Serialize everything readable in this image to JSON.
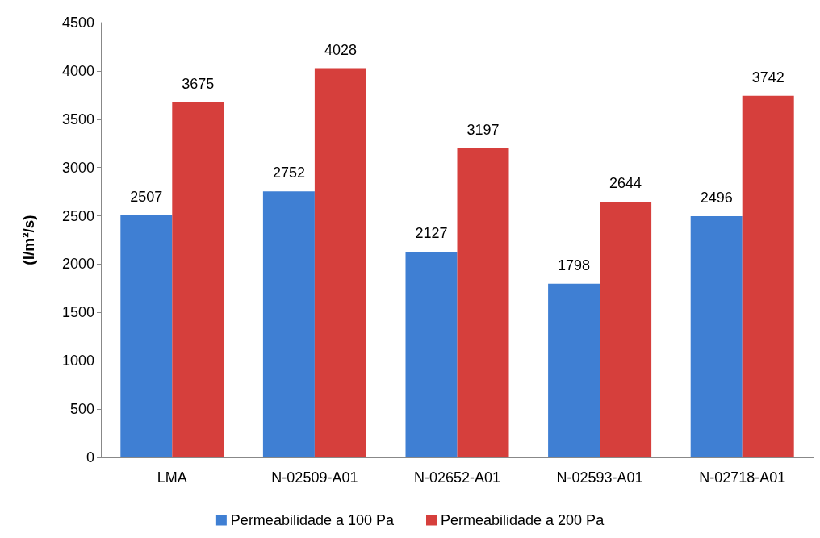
{
  "chart_data": {
    "type": "bar",
    "ylabel": "(l/m²/s)",
    "categories": [
      "LMA",
      "N-02509-A01",
      "N-02652-A01",
      "N-02593-A01",
      "N-02718-A01"
    ],
    "series": [
      {
        "name": "Permeabilidade a 100 Pa",
        "color": "#3f7fd3",
        "values": [
          2507,
          2752,
          2127,
          1798,
          2496
        ]
      },
      {
        "name": "Permeabilidade a 200 Pa",
        "color": "#d63f3c",
        "values": [
          3675,
          4028,
          3197,
          2644,
          3742
        ]
      }
    ],
    "ylim": [
      0,
      4500
    ],
    "yticks": [
      0,
      500,
      1000,
      1500,
      2000,
      2500,
      3000,
      3500,
      4000,
      4500
    ],
    "data_labels": true,
    "grid": false,
    "legend": "bottom"
  }
}
